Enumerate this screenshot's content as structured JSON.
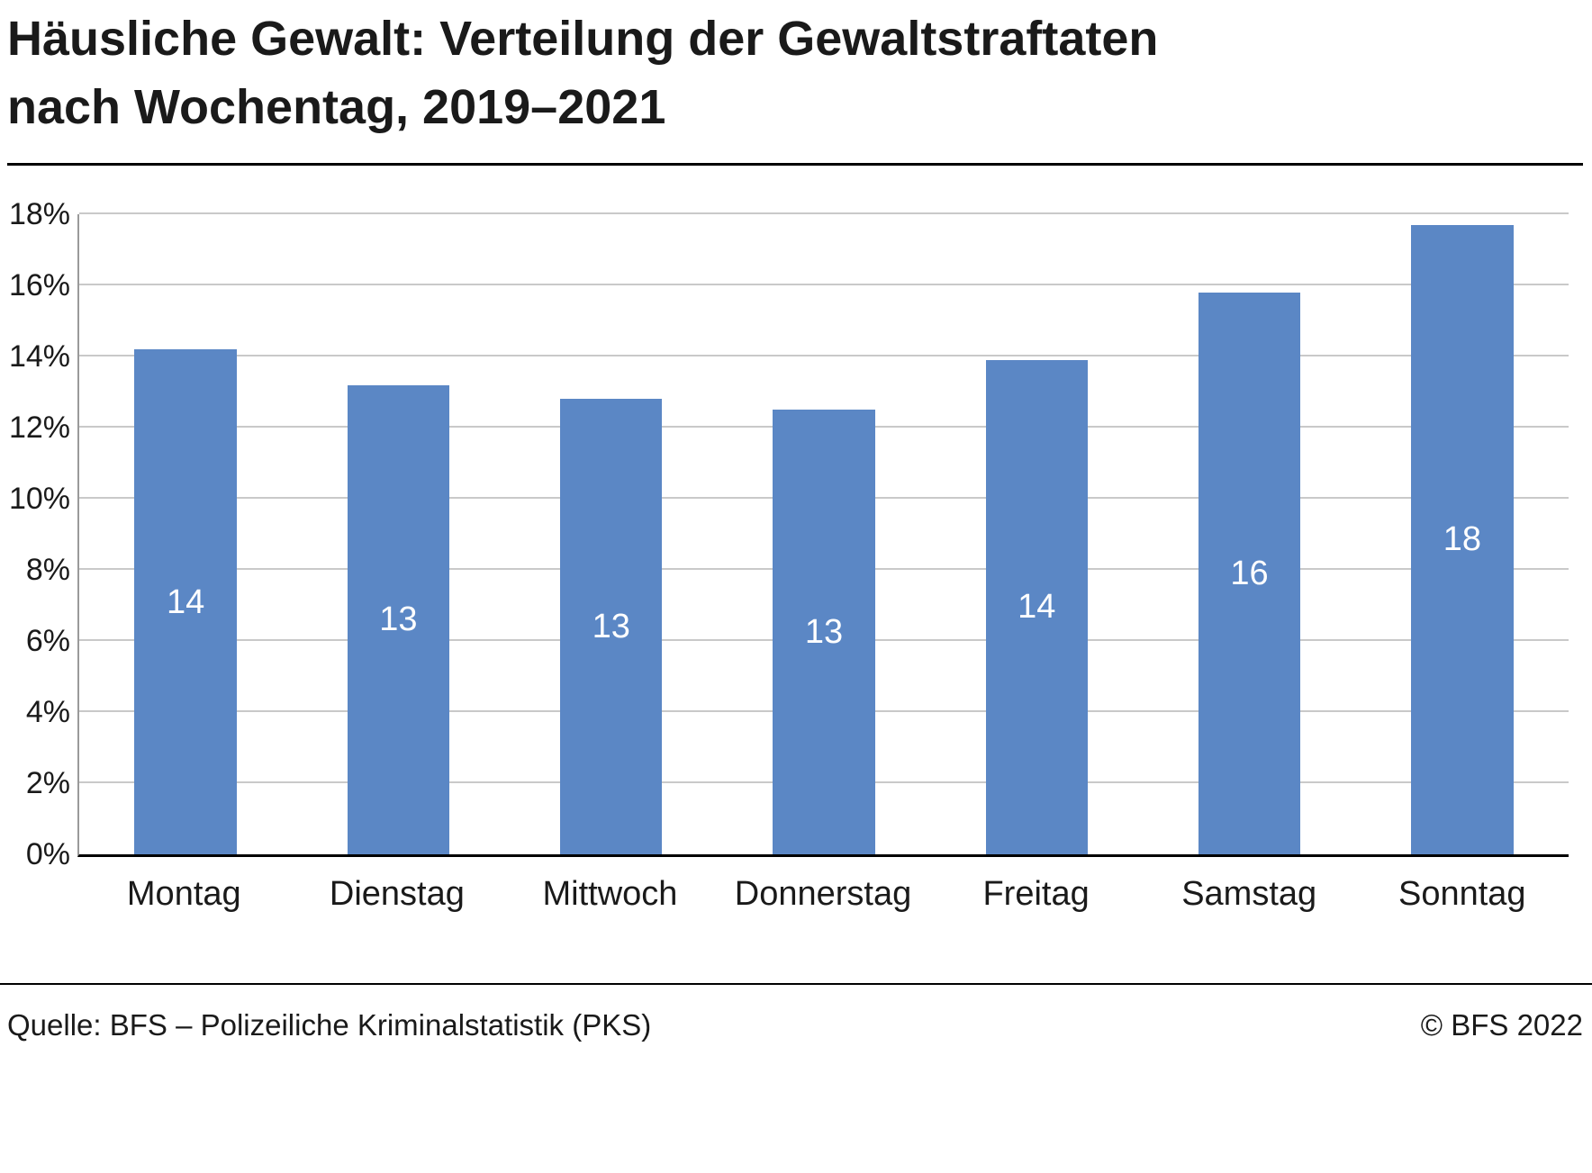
{
  "title": {
    "line1": "Häusliche Gewalt: Verteilung der Gewaltstraftaten",
    "line2": "nach Wochentag, 2019–2021"
  },
  "footer": {
    "source": "Quelle: BFS – Polizeiliche Kriminalstatistik (PKS)",
    "copyright": "© BFS 2022"
  },
  "colors": {
    "bar": "#5B87C5",
    "gridline": "#c9c9c9",
    "axis_bottom": "#000000",
    "axis_left": "#9a9a9a"
  },
  "chart_data": {
    "type": "bar",
    "title": "Häusliche Gewalt: Verteilung der Gewaltstraftaten nach Wochentag, 2019–2021",
    "categories": [
      "Montag",
      "Dienstag",
      "Mittwoch",
      "Donnerstag",
      "Freitag",
      "Samstag",
      "Sonntag"
    ],
    "values": [
      14.2,
      13.2,
      12.8,
      12.5,
      13.9,
      15.8,
      17.7
    ],
    "bar_labels": [
      "14",
      "13",
      "13",
      "13",
      "14",
      "16",
      "18"
    ],
    "xlabel": "",
    "ylabel": "",
    "ylim": [
      0,
      18
    ],
    "ytick_step": 2,
    "ytick_suffix": "%",
    "grid": "horizontal",
    "legend": "none"
  }
}
